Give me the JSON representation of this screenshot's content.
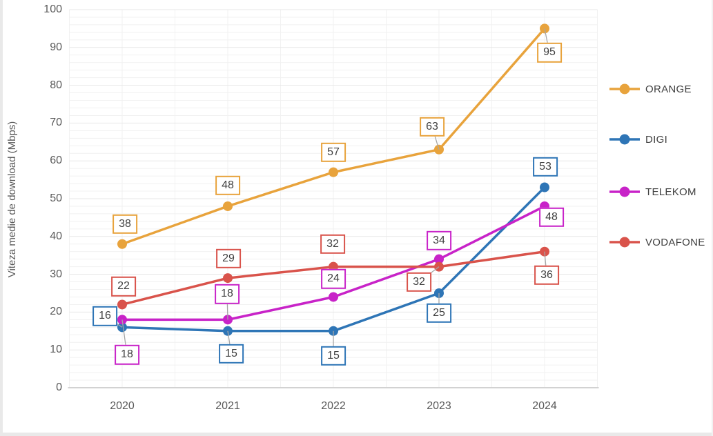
{
  "chart_data": {
    "type": "line",
    "title": "",
    "xlabel": "",
    "ylabel": "Viteza medie de download (Mbps)",
    "categories": [
      "2020",
      "2021",
      "2022",
      "2023",
      "2024"
    ],
    "ylim": [
      0,
      100
    ],
    "y_major_unit": 10,
    "y_minor_unit": 2,
    "y_ticks": [
      0,
      10,
      20,
      30,
      40,
      50,
      60,
      70,
      80,
      90,
      100
    ],
    "grid": "on",
    "legend_position": "right",
    "series": [
      {
        "name": "ORANGE",
        "color": "#E8A33C",
        "values": [
          38,
          48,
          57,
          63,
          95
        ],
        "labels": [
          {
            "dx": 4,
            "dy": -29,
            "leader": false
          },
          {
            "dx": 0,
            "dy": -30,
            "leader": false
          },
          {
            "dx": 0,
            "dy": -29,
            "leader": false
          },
          {
            "dx": -10,
            "dy": -33,
            "leader": true
          },
          {
            "dx": 7,
            "dy": 35,
            "leader": true
          }
        ]
      },
      {
        "name": "DIGI",
        "color": "#2E75B6",
        "values": [
          16,
          15,
          15,
          25,
          53
        ],
        "labels": [
          {
            "dx": -25,
            "dy": -16,
            "leader": true
          },
          {
            "dx": 5,
            "dy": 33,
            "leader": true
          },
          {
            "dx": 0,
            "dy": 36,
            "leader": true
          },
          {
            "dx": 0,
            "dy": 29,
            "leader": true
          },
          {
            "dx": 1,
            "dy": -30,
            "leader": false
          }
        ]
      },
      {
        "name": "TELEKOM",
        "color": "#C823C8",
        "values": [
          18,
          18,
          24,
          34,
          48
        ],
        "labels": [
          {
            "dx": 7,
            "dy": 51,
            "leader": true
          },
          {
            "dx": -1,
            "dy": -37,
            "leader": true
          },
          {
            "dx": 0,
            "dy": -26,
            "leader": false
          },
          {
            "dx": 0,
            "dy": -27,
            "leader": false
          },
          {
            "dx": 10,
            "dy": 16,
            "leader": false
          }
        ]
      },
      {
        "name": "VODAFONE",
        "color": "#D9534B",
        "values": [
          22,
          29,
          32,
          32,
          36
        ],
        "labels": [
          {
            "dx": 2,
            "dy": -26,
            "leader": false
          },
          {
            "dx": 1,
            "dy": -28,
            "leader": false
          },
          {
            "dx": -1,
            "dy": -33,
            "leader": false
          },
          {
            "dx": -29,
            "dy": 22,
            "leader": true
          },
          {
            "dx": 3,
            "dy": 34,
            "leader": true
          }
        ]
      }
    ],
    "colors": {
      "grid_minor": "#F1F1F1",
      "grid_major": "#E7E7E7",
      "axis_line": "#D2D2D2",
      "tick_text": "#595959",
      "label_text": "#3F3F3F",
      "leader_line": "#A6A6A6"
    }
  }
}
